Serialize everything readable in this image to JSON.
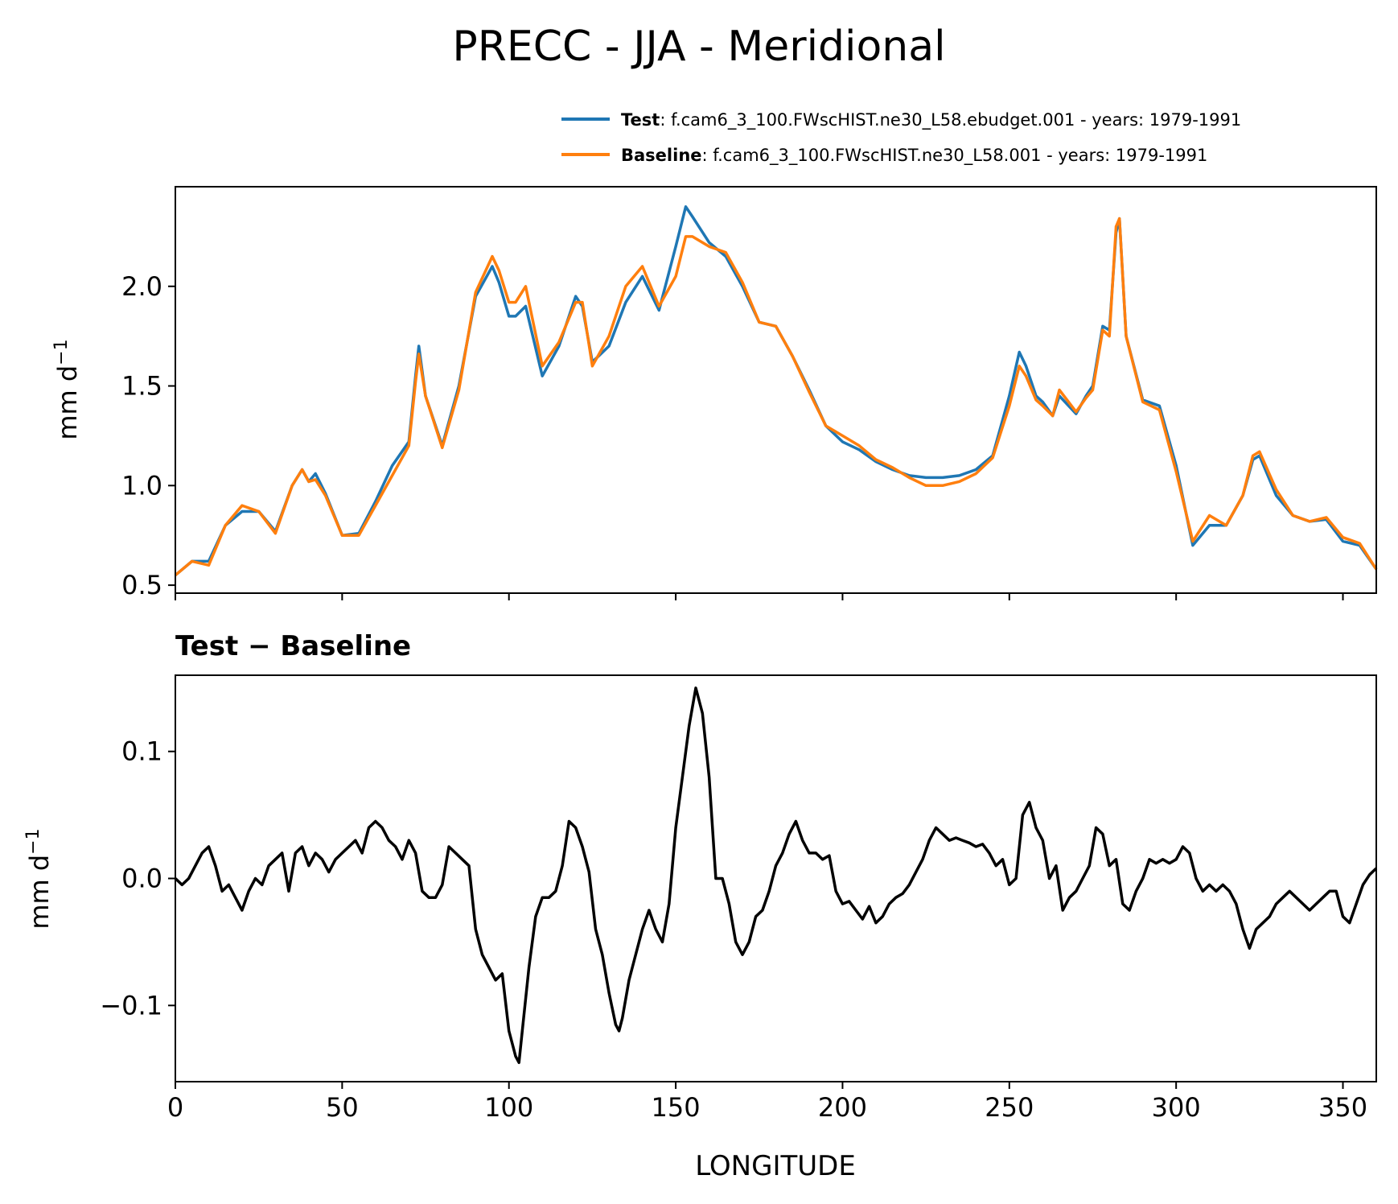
{
  "title": "PRECC - JJA - Meridional",
  "colors": {
    "test": "#1f77b4",
    "baseline": "#ff7f0e",
    "diff": "#000000",
    "axes": "#000000"
  },
  "legend": {
    "test_label": "Test",
    "test_text": ": f.cam6_3_100.FWscHIST.ne30_L58.ebudget.001 - years: 1979-1991",
    "baseline_label": "Baseline",
    "baseline_text": ": f.cam6_3_100.FWscHIST.ne30_L58.001 - years: 1979-1991"
  },
  "chart_data": [
    {
      "type": "line",
      "title": "",
      "xlabel": "",
      "ylabel": "mm d",
      "ylabel_sup": "−1",
      "xlim": [
        0,
        360
      ],
      "ylim": [
        0.46,
        2.5
      ],
      "xticks": [
        0,
        50,
        100,
        150,
        200,
        250,
        300,
        350
      ],
      "yticks": [
        0.5,
        1.0,
        1.5,
        2.0
      ],
      "ytick_labels": [
        "0.5",
        "1.0",
        "1.5",
        "2.0"
      ],
      "legend_position": "above-right",
      "series": [
        {
          "name": "Test",
          "x": [
            0,
            5,
            10,
            15,
            20,
            25,
            30,
            35,
            38,
            40,
            42,
            45,
            50,
            55,
            60,
            65,
            70,
            72,
            73,
            75,
            80,
            85,
            90,
            95,
            97,
            100,
            102,
            105,
            110,
            115,
            120,
            122,
            125,
            130,
            135,
            140,
            145,
            150,
            153,
            155,
            160,
            165,
            170,
            175,
            180,
            185,
            190,
            195,
            200,
            205,
            210,
            215,
            220,
            225,
            230,
            235,
            240,
            245,
            250,
            253,
            255,
            258,
            260,
            263,
            265,
            270,
            273,
            275,
            278,
            280,
            282,
            283,
            285,
            290,
            295,
            300,
            305,
            310,
            315,
            320,
            323,
            325,
            330,
            335,
            340,
            345,
            350,
            355,
            360
          ],
          "values": [
            0.55,
            0.62,
            0.62,
            0.8,
            0.87,
            0.87,
            0.77,
            1.0,
            1.08,
            1.02,
            1.06,
            0.96,
            0.75,
            0.76,
            0.92,
            1.1,
            1.22,
            1.55,
            1.7,
            1.45,
            1.2,
            1.5,
            1.95,
            2.1,
            2.02,
            1.85,
            1.85,
            1.9,
            1.55,
            1.7,
            1.95,
            1.9,
            1.62,
            1.7,
            1.92,
            2.05,
            1.88,
            2.2,
            2.4,
            2.35,
            2.22,
            2.15,
            2.0,
            1.82,
            1.8,
            1.65,
            1.48,
            1.3,
            1.22,
            1.18,
            1.12,
            1.08,
            1.05,
            1.04,
            1.04,
            1.05,
            1.08,
            1.15,
            1.45,
            1.67,
            1.6,
            1.45,
            1.42,
            1.35,
            1.45,
            1.36,
            1.45,
            1.5,
            1.8,
            1.78,
            2.27,
            2.34,
            1.75,
            1.43,
            1.4,
            1.1,
            0.7,
            0.8,
            0.8,
            0.95,
            1.13,
            1.15,
            0.95,
            0.85,
            0.82,
            0.83,
            0.72,
            0.7,
            0.58
          ]
        },
        {
          "name": "Baseline",
          "x": [
            0,
            5,
            10,
            15,
            20,
            25,
            30,
            35,
            38,
            40,
            42,
            45,
            50,
            55,
            60,
            65,
            70,
            72,
            73,
            75,
            80,
            85,
            90,
            95,
            97,
            100,
            102,
            105,
            110,
            115,
            120,
            122,
            125,
            130,
            135,
            140,
            145,
            150,
            153,
            155,
            160,
            165,
            170,
            175,
            180,
            185,
            190,
            195,
            200,
            205,
            210,
            215,
            220,
            225,
            230,
            235,
            240,
            245,
            250,
            253,
            255,
            258,
            260,
            263,
            265,
            270,
            273,
            275,
            278,
            280,
            282,
            283,
            285,
            290,
            295,
            300,
            305,
            310,
            315,
            320,
            323,
            325,
            330,
            335,
            340,
            345,
            350,
            355,
            360
          ],
          "values": [
            0.55,
            0.62,
            0.6,
            0.8,
            0.9,
            0.87,
            0.76,
            1.0,
            1.08,
            1.02,
            1.03,
            0.95,
            0.75,
            0.75,
            0.9,
            1.05,
            1.2,
            1.52,
            1.66,
            1.45,
            1.19,
            1.48,
            1.97,
            2.15,
            2.08,
            1.92,
            1.92,
            2.0,
            1.6,
            1.72,
            1.92,
            1.92,
            1.6,
            1.75,
            2.0,
            2.1,
            1.9,
            2.05,
            2.25,
            2.25,
            2.2,
            2.17,
            2.02,
            1.82,
            1.8,
            1.65,
            1.47,
            1.3,
            1.25,
            1.2,
            1.13,
            1.09,
            1.04,
            1.0,
            1.0,
            1.02,
            1.06,
            1.14,
            1.4,
            1.6,
            1.55,
            1.43,
            1.4,
            1.35,
            1.48,
            1.37,
            1.44,
            1.48,
            1.78,
            1.75,
            2.3,
            2.34,
            1.75,
            1.42,
            1.38,
            1.07,
            0.72,
            0.85,
            0.8,
            0.95,
            1.15,
            1.17,
            0.98,
            0.85,
            0.82,
            0.84,
            0.74,
            0.71,
            0.58
          ]
        }
      ]
    },
    {
      "type": "line",
      "title": "Test − Baseline",
      "xlabel": "LONGITUDE",
      "ylabel": "mm d",
      "ylabel_sup": "−1",
      "xlim": [
        0,
        360
      ],
      "ylim": [
        -0.16,
        0.16
      ],
      "xticks": [
        0,
        50,
        100,
        150,
        200,
        250,
        300,
        350
      ],
      "xtick_labels": [
        "0",
        "50",
        "100",
        "150",
        "200",
        "250",
        "300",
        "350"
      ],
      "yticks": [
        -0.1,
        0.0,
        0.1
      ],
      "ytick_labels": [
        "−0.1",
        "0.0",
        "0.1"
      ],
      "series": [
        {
          "name": "Test − Baseline",
          "x": [
            0,
            2,
            4,
            6,
            8,
            10,
            12,
            14,
            16,
            18,
            20,
            22,
            24,
            26,
            28,
            30,
            32,
            34,
            36,
            38,
            40,
            42,
            44,
            46,
            48,
            50,
            52,
            54,
            56,
            58,
            60,
            62,
            64,
            66,
            68,
            70,
            72,
            74,
            76,
            78,
            80,
            82,
            84,
            86,
            88,
            90,
            92,
            94,
            96,
            98,
            100,
            102,
            103,
            104,
            106,
            108,
            110,
            112,
            114,
            116,
            118,
            120,
            122,
            124,
            126,
            128,
            130,
            132,
            133,
            134,
            136,
            138,
            140,
            142,
            144,
            146,
            148,
            150,
            152,
            154,
            156,
            158,
            160,
            162,
            164,
            166,
            168,
            170,
            172,
            174,
            176,
            178,
            180,
            182,
            184,
            186,
            188,
            190,
            192,
            194,
            196,
            198,
            200,
            202,
            204,
            206,
            208,
            210,
            212,
            214,
            216,
            218,
            220,
            222,
            224,
            226,
            228,
            230,
            232,
            234,
            236,
            238,
            240,
            242,
            244,
            246,
            248,
            250,
            252,
            254,
            256,
            258,
            260,
            262,
            264,
            266,
            268,
            270,
            272,
            274,
            276,
            278,
            280,
            282,
            284,
            286,
            288,
            290,
            292,
            294,
            296,
            298,
            300,
            302,
            304,
            306,
            308,
            310,
            312,
            314,
            316,
            318,
            320,
            322,
            324,
            326,
            328,
            330,
            332,
            334,
            336,
            338,
            340,
            342,
            344,
            346,
            348,
            350,
            352,
            354,
            356,
            358,
            360
          ],
          "values": [
            0.0,
            -0.005,
            0.0,
            0.01,
            0.02,
            0.025,
            0.01,
            -0.01,
            -0.005,
            -0.015,
            -0.025,
            -0.01,
            0.0,
            -0.005,
            0.01,
            0.015,
            0.02,
            -0.01,
            0.02,
            0.025,
            0.01,
            0.02,
            0.015,
            0.005,
            0.015,
            0.02,
            0.025,
            0.03,
            0.02,
            0.04,
            0.045,
            0.04,
            0.03,
            0.025,
            0.015,
            0.03,
            0.02,
            -0.01,
            -0.015,
            -0.015,
            -0.005,
            0.025,
            0.02,
            0.015,
            0.01,
            -0.04,
            -0.06,
            -0.07,
            -0.08,
            -0.075,
            -0.12,
            -0.14,
            -0.145,
            -0.12,
            -0.07,
            -0.03,
            -0.015,
            -0.015,
            -0.01,
            0.01,
            0.045,
            0.04,
            0.025,
            0.005,
            -0.04,
            -0.06,
            -0.09,
            -0.115,
            -0.12,
            -0.11,
            -0.08,
            -0.06,
            -0.04,
            -0.025,
            -0.04,
            -0.05,
            -0.02,
            0.04,
            0.08,
            0.12,
            0.15,
            0.13,
            0.08,
            0.0,
            0.0,
            -0.02,
            -0.05,
            -0.06,
            -0.05,
            -0.03,
            -0.025,
            -0.01,
            0.01,
            0.02,
            0.035,
            0.045,
            0.03,
            0.02,
            0.02,
            0.015,
            0.018,
            -0.01,
            -0.02,
            -0.018,
            -0.025,
            -0.032,
            -0.022,
            -0.035,
            -0.03,
            -0.02,
            -0.015,
            -0.012,
            -0.005,
            0.005,
            0.015,
            0.03,
            0.04,
            0.035,
            0.03,
            0.032,
            0.03,
            0.028,
            0.025,
            0.027,
            0.02,
            0.01,
            0.015,
            -0.005,
            0.0,
            0.05,
            0.06,
            0.04,
            0.03,
            0.0,
            0.01,
            -0.025,
            -0.015,
            -0.01,
            0.0,
            0.01,
            0.04,
            0.035,
            0.01,
            0.015,
            -0.02,
            -0.025,
            -0.01,
            0.0,
            0.015,
            0.012,
            0.015,
            0.012,
            0.015,
            0.025,
            0.02,
            0.0,
            -0.01,
            -0.005,
            -0.01,
            -0.005,
            -0.01,
            -0.02,
            -0.04,
            -0.055,
            -0.04,
            -0.035,
            -0.03,
            -0.02,
            -0.015,
            -0.01,
            -0.015,
            -0.02,
            -0.025,
            -0.02,
            -0.015,
            -0.01,
            -0.01,
            -0.03,
            -0.035,
            -0.02,
            -0.005,
            0.003,
            0.008
          ]
        }
      ]
    }
  ]
}
